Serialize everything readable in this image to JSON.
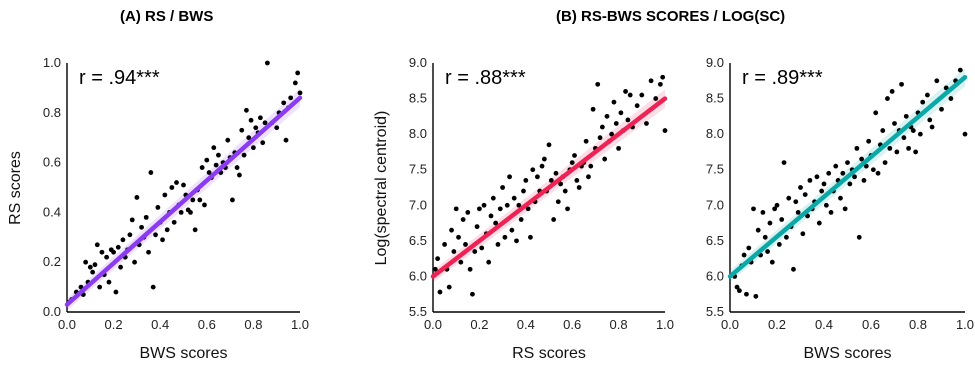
{
  "titles": {
    "a": "(A) RS / BWS",
    "b": "(B) RS-BWS SCORES / LOG(SC)"
  },
  "chart_data": [
    {
      "type": "scatter",
      "panel": "A",
      "xlabel": "BWS scores",
      "ylabel": "RS scores",
      "xlim": [
        0,
        1.0
      ],
      "ylim": [
        0,
        1.0
      ],
      "xticks": [
        "0.0",
        "0.2",
        "0.4",
        "0.6",
        "0.8",
        "1.0"
      ],
      "yticks": [
        "0.0",
        "0.2",
        "0.4",
        "0.6",
        "0.8",
        "1.0"
      ],
      "annotation": "r = .94***",
      "fit": {
        "color": "#8b3cf0",
        "start": [
          0.0,
          0.03
        ],
        "end": [
          1.0,
          0.86
        ]
      },
      "points": [
        [
          0.01,
          0.04
        ],
        [
          0.02,
          0.05
        ],
        [
          0.04,
          0.08
        ],
        [
          0.06,
          0.1
        ],
        [
          0.07,
          0.07
        ],
        [
          0.08,
          0.2
        ],
        [
          0.09,
          0.12
        ],
        [
          0.1,
          0.18
        ],
        [
          0.11,
          0.16
        ],
        [
          0.12,
          0.19
        ],
        [
          0.13,
          0.27
        ],
        [
          0.14,
          0.1
        ],
        [
          0.15,
          0.24
        ],
        [
          0.16,
          0.15
        ],
        [
          0.17,
          0.22
        ],
        [
          0.18,
          0.12
        ],
        [
          0.19,
          0.25
        ],
        [
          0.2,
          0.24
        ],
        [
          0.21,
          0.08
        ],
        [
          0.22,
          0.26
        ],
        [
          0.23,
          0.18
        ],
        [
          0.24,
          0.29
        ],
        [
          0.25,
          0.22
        ],
        [
          0.26,
          0.25
        ],
        [
          0.27,
          0.31
        ],
        [
          0.28,
          0.37
        ],
        [
          0.29,
          0.2
        ],
        [
          0.3,
          0.46
        ],
        [
          0.31,
          0.27
        ],
        [
          0.32,
          0.34
        ],
        [
          0.33,
          0.3
        ],
        [
          0.34,
          0.38
        ],
        [
          0.35,
          0.24
        ],
        [
          0.36,
          0.56
        ],
        [
          0.37,
          0.1
        ],
        [
          0.38,
          0.31
        ],
        [
          0.39,
          0.42
        ],
        [
          0.4,
          0.36
        ],
        [
          0.41,
          0.29
        ],
        [
          0.42,
          0.47
        ],
        [
          0.43,
          0.33
        ],
        [
          0.44,
          0.4
        ],
        [
          0.45,
          0.5
        ],
        [
          0.46,
          0.36
        ],
        [
          0.47,
          0.52
        ],
        [
          0.48,
          0.43
        ],
        [
          0.49,
          0.4
        ],
        [
          0.5,
          0.51
        ],
        [
          0.51,
          0.47
        ],
        [
          0.52,
          0.41
        ],
        [
          0.53,
          0.4
        ],
        [
          0.54,
          0.45
        ],
        [
          0.55,
          0.33
        ],
        [
          0.56,
          0.49
        ],
        [
          0.57,
          0.45
        ],
        [
          0.58,
          0.58
        ],
        [
          0.59,
          0.43
        ],
        [
          0.6,
          0.61
        ],
        [
          0.61,
          0.56
        ],
        [
          0.62,
          0.54
        ],
        [
          0.63,
          0.66
        ],
        [
          0.64,
          0.59
        ],
        [
          0.65,
          0.63
        ],
        [
          0.66,
          0.56
        ],
        [
          0.67,
          0.6
        ],
        [
          0.68,
          0.58
        ],
        [
          0.69,
          0.69
        ],
        [
          0.7,
          0.62
        ],
        [
          0.71,
          0.45
        ],
        [
          0.72,
          0.64
        ],
        [
          0.73,
          0.58
        ],
        [
          0.74,
          0.55
        ],
        [
          0.75,
          0.73
        ],
        [
          0.76,
          0.63
        ],
        [
          0.77,
          0.81
        ],
        [
          0.78,
          0.7
        ],
        [
          0.79,
          0.77
        ],
        [
          0.8,
          0.66
        ],
        [
          0.81,
          0.74
        ],
        [
          0.82,
          0.72
        ],
        [
          0.83,
          0.78
        ],
        [
          0.84,
          0.68
        ],
        [
          0.85,
          0.76
        ],
        [
          0.86,
          1.0
        ],
        [
          0.88,
          0.76
        ],
        [
          0.9,
          0.74
        ],
        [
          0.91,
          0.8
        ],
        [
          0.93,
          0.84
        ],
        [
          0.94,
          0.69
        ],
        [
          0.95,
          0.82
        ],
        [
          0.96,
          0.86
        ],
        [
          0.98,
          0.92
        ],
        [
          0.99,
          0.96
        ],
        [
          1.0,
          0.88
        ]
      ]
    },
    {
      "type": "scatter",
      "panel": "B1",
      "xlabel": "RS scores",
      "ylabel": "Log(spectral centroid)",
      "xlim": [
        0,
        1.0
      ],
      "ylim": [
        5.5,
        9.0
      ],
      "xticks": [
        "0.0",
        "0.2",
        "0.4",
        "0.6",
        "0.8",
        "1.0"
      ],
      "yticks": [
        "5.5",
        "6.0",
        "6.5",
        "7.0",
        "7.5",
        "8.0",
        "8.5",
        "9.0"
      ],
      "annotation": "r = .88***",
      "fit": {
        "color": "#ee2255",
        "start": [
          0.0,
          6.0
        ],
        "end": [
          1.0,
          8.5
        ]
      },
      "points": [
        [
          0.01,
          6.1
        ],
        [
          0.02,
          6.25
        ],
        [
          0.03,
          5.78
        ],
        [
          0.05,
          6.45
        ],
        [
          0.06,
          6.1
        ],
        [
          0.07,
          5.85
        ],
        [
          0.08,
          6.65
        ],
        [
          0.09,
          6.35
        ],
        [
          0.1,
          6.95
        ],
        [
          0.11,
          6.55
        ],
        [
          0.12,
          6.2
        ],
        [
          0.13,
          6.8
        ],
        [
          0.14,
          6.45
        ],
        [
          0.15,
          6.9
        ],
        [
          0.16,
          6.1
        ],
        [
          0.17,
          5.75
        ],
        [
          0.18,
          6.35
        ],
        [
          0.19,
          6.7
        ],
        [
          0.2,
          6.95
        ],
        [
          0.21,
          6.4
        ],
        [
          0.22,
          7.0
        ],
        [
          0.23,
          6.6
        ],
        [
          0.24,
          6.2
        ],
        [
          0.25,
          6.85
        ],
        [
          0.26,
          7.1
        ],
        [
          0.27,
          6.75
        ],
        [
          0.28,
          6.45
        ],
        [
          0.29,
          6.95
        ],
        [
          0.3,
          7.25
        ],
        [
          0.31,
          6.55
        ],
        [
          0.32,
          7.0
        ],
        [
          0.33,
          7.4
        ],
        [
          0.34,
          6.65
        ],
        [
          0.35,
          7.1
        ],
        [
          0.36,
          6.5
        ],
        [
          0.37,
          7.0
        ],
        [
          0.38,
          6.8
        ],
        [
          0.39,
          7.2
        ],
        [
          0.4,
          7.35
        ],
        [
          0.41,
          6.95
        ],
        [
          0.42,
          6.55
        ],
        [
          0.43,
          7.5
        ],
        [
          0.44,
          7.05
        ],
        [
          0.45,
          7.4
        ],
        [
          0.46,
          7.2
        ],
        [
          0.47,
          7.55
        ],
        [
          0.48,
          7.65
        ],
        [
          0.49,
          7.2
        ],
        [
          0.5,
          7.85
        ],
        [
          0.51,
          7.35
        ],
        [
          0.52,
          6.8
        ],
        [
          0.53,
          7.45
        ],
        [
          0.54,
          7.05
        ],
        [
          0.55,
          7.3
        ],
        [
          0.56,
          7.4
        ],
        [
          0.57,
          7.2
        ],
        [
          0.58,
          6.95
        ],
        [
          0.59,
          7.5
        ],
        [
          0.6,
          7.6
        ],
        [
          0.61,
          7.7
        ],
        [
          0.62,
          7.35
        ],
        [
          0.63,
          7.25
        ],
        [
          0.64,
          7.55
        ],
        [
          0.65,
          7.6
        ],
        [
          0.66,
          7.9
        ],
        [
          0.67,
          7.4
        ],
        [
          0.68,
          7.55
        ],
        [
          0.69,
          8.35
        ],
        [
          0.7,
          7.8
        ],
        [
          0.71,
          8.7
        ],
        [
          0.72,
          7.95
        ],
        [
          0.73,
          8.1
        ],
        [
          0.74,
          7.65
        ],
        [
          0.75,
          8.25
        ],
        [
          0.76,
          7.9
        ],
        [
          0.77,
          8.0
        ],
        [
          0.78,
          8.45
        ],
        [
          0.79,
          8.15
        ],
        [
          0.8,
          7.8
        ],
        [
          0.81,
          8.3
        ],
        [
          0.82,
          8.05
        ],
        [
          0.83,
          8.6
        ],
        [
          0.84,
          8.2
        ],
        [
          0.85,
          8.55
        ],
        [
          0.86,
          8.1
        ],
        [
          0.88,
          8.4
        ],
        [
          0.9,
          8.55
        ],
        [
          0.92,
          8.15
        ],
        [
          0.94,
          8.75
        ],
        [
          0.96,
          8.5
        ],
        [
          0.98,
          8.7
        ],
        [
          0.99,
          8.8
        ],
        [
          1.0,
          8.05
        ]
      ]
    },
    {
      "type": "scatter",
      "panel": "B2",
      "xlabel": "BWS scores",
      "ylabel": "",
      "xlim": [
        0,
        1.0
      ],
      "ylim": [
        5.5,
        9.0
      ],
      "xticks": [
        "0.0",
        "0.2",
        "0.4",
        "0.6",
        "0.8",
        "1.0"
      ],
      "yticks": [
        "5.5",
        "6.0",
        "6.5",
        "7.0",
        "7.5",
        "8.0",
        "8.5",
        "9.0"
      ],
      "annotation": "r = .89***",
      "fit": {
        "color": "#0aa8a6",
        "start": [
          0.0,
          6.0
        ],
        "end": [
          1.0,
          8.8
        ]
      },
      "points": [
        [
          0.02,
          6.0
        ],
        [
          0.03,
          5.85
        ],
        [
          0.04,
          5.8
        ],
        [
          0.05,
          6.15
        ],
        [
          0.06,
          6.3
        ],
        [
          0.07,
          5.75
        ],
        [
          0.08,
          6.4
        ],
        [
          0.09,
          6.2
        ],
        [
          0.1,
          6.95
        ],
        [
          0.11,
          5.72
        ],
        [
          0.12,
          6.65
        ],
        [
          0.13,
          6.3
        ],
        [
          0.14,
          6.9
        ],
        [
          0.15,
          6.55
        ],
        [
          0.16,
          6.35
        ],
        [
          0.17,
          6.75
        ],
        [
          0.18,
          6.2
        ],
        [
          0.19,
          6.95
        ],
        [
          0.2,
          7.0
        ],
        [
          0.21,
          6.45
        ],
        [
          0.22,
          6.8
        ],
        [
          0.23,
          7.6
        ],
        [
          0.24,
          6.55
        ],
        [
          0.25,
          7.1
        ],
        [
          0.26,
          6.7
        ],
        [
          0.27,
          6.1
        ],
        [
          0.28,
          7.05
        ],
        [
          0.29,
          6.9
        ],
        [
          0.3,
          7.25
        ],
        [
          0.31,
          6.6
        ],
        [
          0.32,
          7.15
        ],
        [
          0.33,
          6.85
        ],
        [
          0.34,
          7.35
        ],
        [
          0.35,
          6.95
        ],
        [
          0.36,
          7.05
        ],
        [
          0.37,
          7.4
        ],
        [
          0.38,
          6.75
        ],
        [
          0.39,
          7.2
        ],
        [
          0.4,
          7.3
        ],
        [
          0.41,
          7.0
        ],
        [
          0.42,
          7.45
        ],
        [
          0.43,
          6.9
        ],
        [
          0.44,
          7.2
        ],
        [
          0.45,
          7.55
        ],
        [
          0.46,
          7.35
        ],
        [
          0.47,
          7.1
        ],
        [
          0.48,
          7.45
        ],
        [
          0.49,
          6.95
        ],
        [
          0.5,
          7.6
        ],
        [
          0.51,
          7.3
        ],
        [
          0.52,
          7.5
        ],
        [
          0.53,
          7.4
        ],
        [
          0.54,
          7.8
        ],
        [
          0.55,
          6.55
        ],
        [
          0.56,
          7.65
        ],
        [
          0.57,
          7.35
        ],
        [
          0.58,
          7.55
        ],
        [
          0.59,
          7.9
        ],
        [
          0.6,
          7.7
        ],
        [
          0.61,
          7.5
        ],
        [
          0.62,
          8.3
        ],
        [
          0.63,
          7.45
        ],
        [
          0.64,
          7.85
        ],
        [
          0.65,
          8.05
        ],
        [
          0.66,
          7.6
        ],
        [
          0.67,
          8.5
        ],
        [
          0.68,
          7.8
        ],
        [
          0.69,
          8.6
        ],
        [
          0.7,
          8.15
        ],
        [
          0.71,
          7.75
        ],
        [
          0.72,
          8.05
        ],
        [
          0.73,
          8.7
        ],
        [
          0.74,
          7.95
        ],
        [
          0.75,
          8.25
        ],
        [
          0.76,
          7.8
        ],
        [
          0.77,
          8.1
        ],
        [
          0.78,
          8.05
        ],
        [
          0.79,
          7.75
        ],
        [
          0.8,
          8.3
        ],
        [
          0.81,
          8.0
        ],
        [
          0.82,
          8.45
        ],
        [
          0.84,
          8.55
        ],
        [
          0.85,
          8.2
        ],
        [
          0.86,
          8.1
        ],
        [
          0.88,
          8.75
        ],
        [
          0.9,
          8.35
        ],
        [
          0.92,
          8.65
        ],
        [
          0.94,
          8.5
        ],
        [
          0.96,
          8.75
        ],
        [
          0.98,
          8.9
        ],
        [
          1.0,
          8.0
        ]
      ]
    }
  ]
}
